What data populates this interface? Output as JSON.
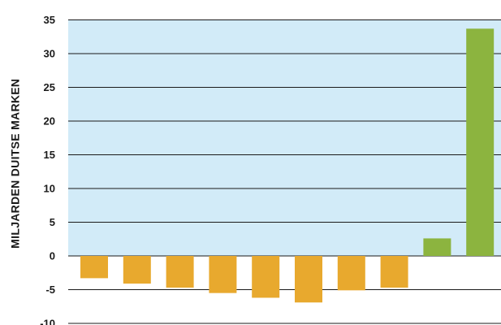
{
  "chart_data": {
    "type": "bar",
    "title": "",
    "xlabel": "",
    "ylabel": "MILJARDEN DUITSE MARKEN",
    "ylim": [
      -10,
      35
    ],
    "yticks": [
      35,
      30,
      25,
      20,
      15,
      10,
      5,
      0,
      -5,
      -10
    ],
    "ytick_labels": [
      "35",
      "30",
      "25",
      "20",
      "15",
      "10",
      "5",
      "0",
      "-5",
      "-10"
    ],
    "grid": "horizontal",
    "values": [
      -3.3,
      -4.1,
      -4.7,
      -5.5,
      -6.2,
      -6.9,
      -5.1,
      -4.7,
      2.6,
      33.7
    ],
    "colors": {
      "negative": "#E8A92E",
      "positive": "#8CB43F",
      "plot_background": "#D2EBF8",
      "grid": "#1a1a1a"
    }
  }
}
